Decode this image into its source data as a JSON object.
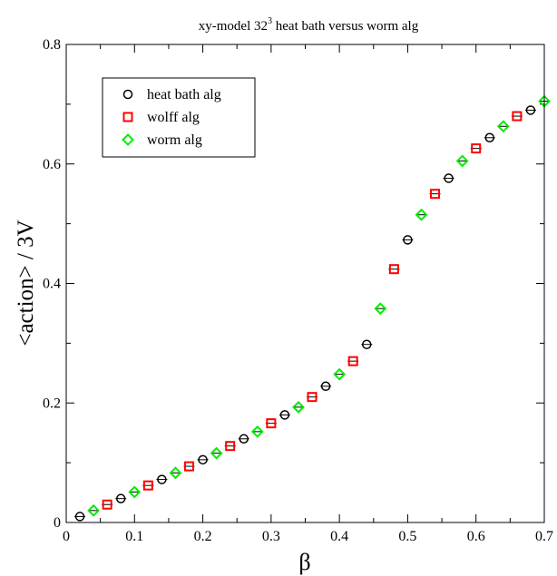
{
  "chart_data": {
    "type": "scatter",
    "title": {
      "prefix": "xy-model 32",
      "superscript": "3",
      "suffix": " heat bath versus worm alg"
    },
    "xlabel": "β",
    "ylabel": "<action> / 3V",
    "xlim": [
      0,
      0.7
    ],
    "ylim": [
      0,
      0.8
    ],
    "xticks": [
      "0",
      "0.1",
      "0.2",
      "0.3",
      "0.4",
      "0.5",
      "0.6",
      "0.7"
    ],
    "yticks": [
      "0",
      "0.2",
      "0.4",
      "0.6",
      "0.8"
    ],
    "grid": false,
    "legend_position": "top-left",
    "series": [
      {
        "name": "heat bath alg",
        "marker": "circle",
        "color": "#000000",
        "points": [
          [
            0.02,
            0.01
          ],
          [
            0.08,
            0.04
          ],
          [
            0.14,
            0.072
          ],
          [
            0.2,
            0.105
          ],
          [
            0.26,
            0.14
          ],
          [
            0.32,
            0.18
          ],
          [
            0.38,
            0.228
          ],
          [
            0.44,
            0.298
          ],
          [
            0.5,
            0.473
          ],
          [
            0.56,
            0.576
          ],
          [
            0.62,
            0.644
          ],
          [
            0.68,
            0.69
          ]
        ]
      },
      {
        "name": "wolff alg",
        "marker": "square",
        "color": "#ff0000",
        "points": [
          [
            0.06,
            0.03
          ],
          [
            0.12,
            0.062
          ],
          [
            0.18,
            0.094
          ],
          [
            0.24,
            0.128
          ],
          [
            0.3,
            0.166
          ],
          [
            0.36,
            0.21
          ],
          [
            0.42,
            0.27
          ],
          [
            0.48,
            0.424
          ],
          [
            0.54,
            0.55
          ],
          [
            0.6,
            0.626
          ],
          [
            0.66,
            0.68
          ]
        ]
      },
      {
        "name": "worm alg",
        "marker": "diamond",
        "color": "#00ee00",
        "points": [
          [
            0.04,
            0.02
          ],
          [
            0.1,
            0.051
          ],
          [
            0.16,
            0.083
          ],
          [
            0.22,
            0.116
          ],
          [
            0.28,
            0.152
          ],
          [
            0.34,
            0.193
          ],
          [
            0.4,
            0.248
          ],
          [
            0.46,
            0.358
          ],
          [
            0.52,
            0.515
          ],
          [
            0.58,
            0.605
          ],
          [
            0.64,
            0.663
          ],
          [
            0.7,
            0.705
          ]
        ]
      }
    ]
  }
}
